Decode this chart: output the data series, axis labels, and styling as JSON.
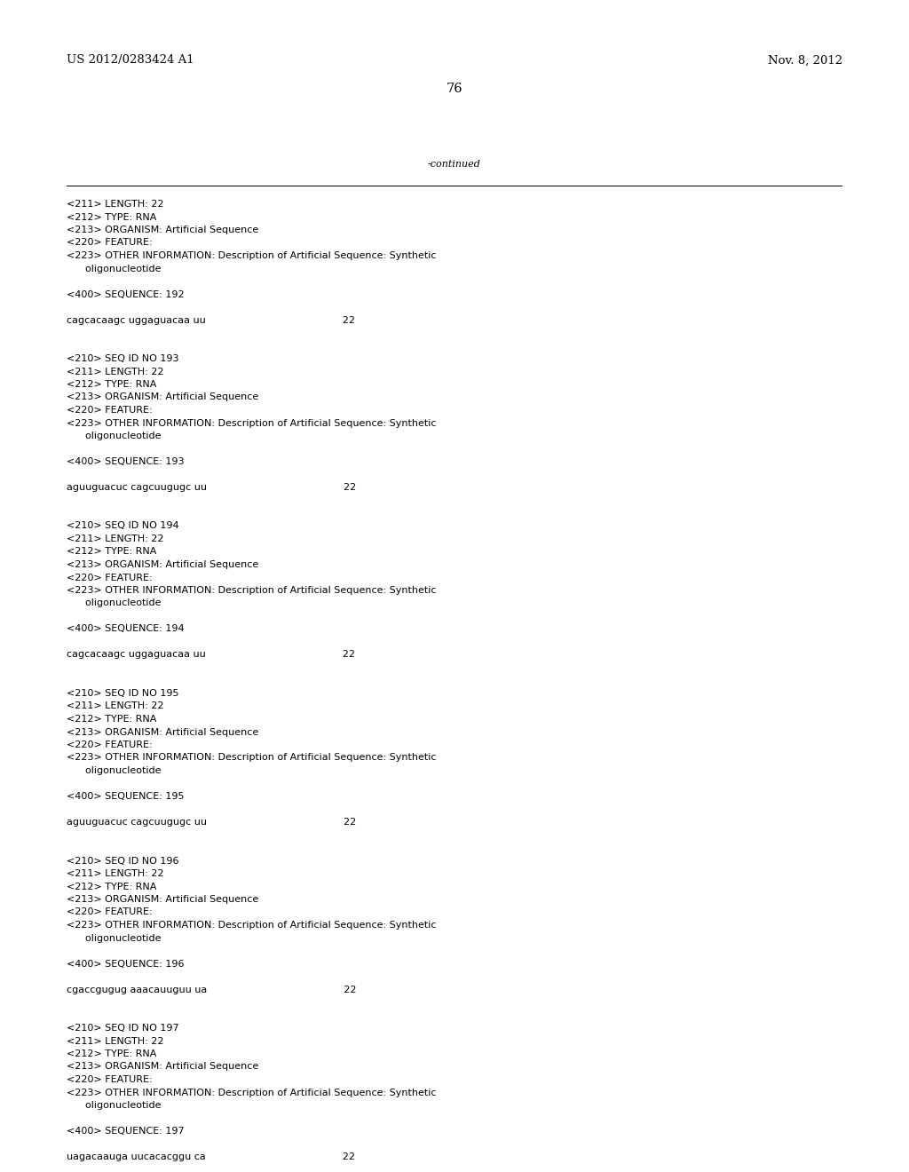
{
  "header_left": "US 2012/0283424 A1",
  "header_right": "Nov. 8, 2012",
  "page_number": "76",
  "continued_text": "-continued",
  "background_color": "#ffffff",
  "text_color": "#000000",
  "font_size_header": 9.5,
  "font_size_page": 10.5,
  "font_size_body": 8.0,
  "monospace_font": "Courier New",
  "serif_font": "DejaVu Serif",
  "content_lines": [
    "<211> LENGTH: 22",
    "<212> TYPE: RNA",
    "<213> ORGANISM: Artificial Sequence",
    "<220> FEATURE:",
    "<223> OTHER INFORMATION: Description of Artificial Sequence: Synthetic",
    "      oligonucleotide",
    "",
    "<400> SEQUENCE: 192",
    "",
    "cagcacaagc uggaguacaa uu                                            22",
    "",
    "",
    "<210> SEQ ID NO 193",
    "<211> LENGTH: 22",
    "<212> TYPE: RNA",
    "<213> ORGANISM: Artificial Sequence",
    "<220> FEATURE:",
    "<223> OTHER INFORMATION: Description of Artificial Sequence: Synthetic",
    "      oligonucleotide",
    "",
    "<400> SEQUENCE: 193",
    "",
    "aguuguacuc cagcuugugc uu                                            22",
    "",
    "",
    "<210> SEQ ID NO 194",
    "<211> LENGTH: 22",
    "<212> TYPE: RNA",
    "<213> ORGANISM: Artificial Sequence",
    "<220> FEATURE:",
    "<223> OTHER INFORMATION: Description of Artificial Sequence: Synthetic",
    "      oligonucleotide",
    "",
    "<400> SEQUENCE: 194",
    "",
    "cagcacaagc uggaguacaa uu                                            22",
    "",
    "",
    "<210> SEQ ID NO 195",
    "<211> LENGTH: 22",
    "<212> TYPE: RNA",
    "<213> ORGANISM: Artificial Sequence",
    "<220> FEATURE:",
    "<223> OTHER INFORMATION: Description of Artificial Sequence: Synthetic",
    "      oligonucleotide",
    "",
    "<400> SEQUENCE: 195",
    "",
    "aguuguacuc cagcuugugc uu                                            22",
    "",
    "",
    "<210> SEQ ID NO 196",
    "<211> LENGTH: 22",
    "<212> TYPE: RNA",
    "<213> ORGANISM: Artificial Sequence",
    "<220> FEATURE:",
    "<223> OTHER INFORMATION: Description of Artificial Sequence: Synthetic",
    "      oligonucleotide",
    "",
    "<400> SEQUENCE: 196",
    "",
    "cgaccgugug aaacauuguu ua                                            22",
    "",
    "",
    "<210> SEQ ID NO 197",
    "<211> LENGTH: 22",
    "<212> TYPE: RNA",
    "<213> ORGANISM: Artificial Sequence",
    "<220> FEATURE:",
    "<223> OTHER INFORMATION: Description of Artificial Sequence: Synthetic",
    "      oligonucleotide",
    "",
    "<400> SEQUENCE: 197",
    "",
    "uagacaauga uucacacggu ca                                            22"
  ]
}
